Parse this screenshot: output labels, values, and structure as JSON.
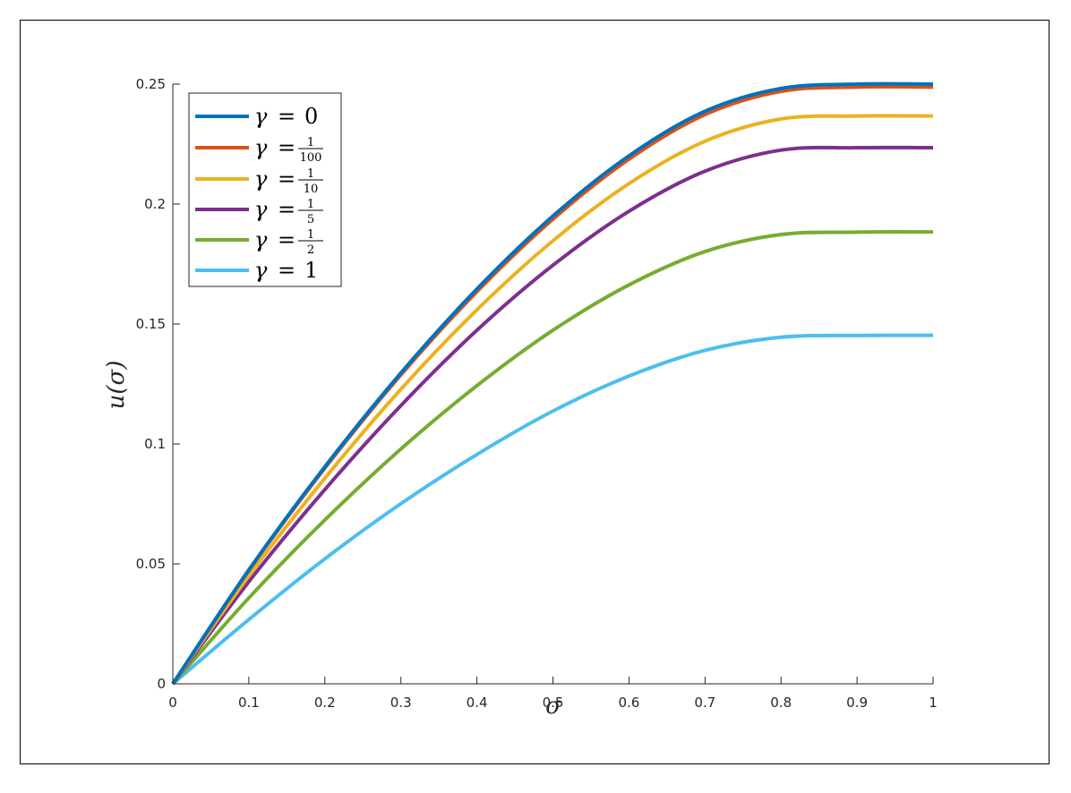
{
  "chart_data": {
    "type": "line",
    "title": "",
    "xlabel": "σ",
    "ylabel": "u(σ)",
    "xlim": [
      0,
      1
    ],
    "ylim": [
      0,
      0.25
    ],
    "x_ticks": [
      "0",
      "0.1",
      "0.2",
      "0.3",
      "0.4",
      "0.5",
      "0.6",
      "0.7",
      "0.8",
      "0.9",
      "1"
    ],
    "y_ticks": [
      "0",
      "0.05",
      "0.1",
      "0.15",
      "0.2",
      "0.25"
    ],
    "grid": false,
    "legend_position": "top-left",
    "x": [
      0,
      0.1,
      0.2,
      0.3,
      0.4,
      0.5,
      0.6,
      0.7,
      0.8,
      0.9,
      1.0
    ],
    "series": [
      {
        "name": "γ = 0",
        "legend_symbol": "γ",
        "legend_value": "0",
        "legend_fraction": null,
        "color": "#0072BD",
        "values": [
          0,
          0.0475,
          0.0905,
          0.1296,
          0.1646,
          0.195,
          0.2201,
          0.2387,
          0.2482,
          0.25,
          0.25
        ]
      },
      {
        "name": "γ = 1/100",
        "legend_symbol": "γ",
        "legend_value": "",
        "legend_fraction": {
          "num": "1",
          "den": "100"
        },
        "color": "#D95319",
        "values": [
          0,
          0.0472,
          0.0899,
          0.1288,
          0.1635,
          0.1937,
          0.2187,
          0.2373,
          0.247,
          0.2488,
          0.2488
        ]
      },
      {
        "name": "γ = 1/10",
        "legend_symbol": "γ",
        "legend_value": "",
        "legend_fraction": {
          "num": "1",
          "den": "10"
        },
        "color": "#EDB120",
        "values": [
          0,
          0.045,
          0.0857,
          0.1228,
          0.1559,
          0.1847,
          0.2085,
          0.2262,
          0.2355,
          0.2367,
          0.2367
        ]
      },
      {
        "name": "γ = 1/5",
        "legend_symbol": "γ",
        "legend_value": "",
        "legend_fraction": {
          "num": "1",
          "den": "5"
        },
        "color": "#7E2F8E",
        "values": [
          0,
          0.0426,
          0.081,
          0.116,
          0.1474,
          0.1745,
          0.197,
          0.2137,
          0.2225,
          0.2235,
          0.2235
        ]
      },
      {
        "name": "γ = 1/2",
        "legend_symbol": "γ",
        "legend_value": "",
        "legend_fraction": {
          "num": "1",
          "den": "2"
        },
        "color": "#77AC30",
        "values": [
          0,
          0.0358,
          0.0683,
          0.0979,
          0.1243,
          0.1474,
          0.1663,
          0.1802,
          0.1873,
          0.1883,
          0.1884
        ]
      },
      {
        "name": "γ = 1",
        "legend_symbol": "γ",
        "legend_value": "1",
        "legend_fraction": null,
        "color": "#4DBEEE",
        "values": [
          0,
          0.0268,
          0.0521,
          0.0751,
          0.0956,
          0.1137,
          0.1283,
          0.139,
          0.1445,
          0.1452,
          0.1453
        ]
      }
    ]
  }
}
